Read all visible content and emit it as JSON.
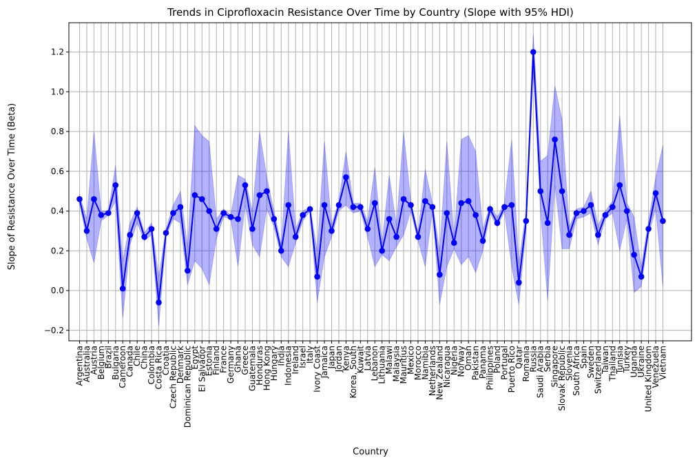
{
  "chart_data": {
    "type": "line",
    "title": "Trends in Ciprofloxacin Resistance Over Time by Country (Slope with 95% HDI)",
    "xlabel": "Country",
    "ylabel": "Slope of Resistance Over Time (Beta)",
    "ylim": [
      -0.25,
      1.33
    ],
    "yticks": [
      -0.2,
      0.0,
      0.2,
      0.4,
      0.6,
      0.8,
      1.0,
      1.2
    ],
    "ytick_labels": [
      "−0.2",
      "0.0",
      "0.2",
      "0.4",
      "0.6",
      "0.8",
      "1.0",
      "1.2"
    ],
    "grid": true,
    "colors": {
      "line": "#0000ff",
      "band": "#0000ff",
      "grid": "#b0b0b0"
    },
    "categories": [
      "Argentina",
      "Australia",
      "Austria",
      "Belgium",
      "Brazil",
      "Bulgaria",
      "Cameroon",
      "Canada",
      "Chile",
      "China",
      "Colombia",
      "Costa Rica",
      "Croatia",
      "Czech Republic",
      "Denmark",
      "Dominican Republic",
      "Egypt",
      "El Salvador",
      "Estonia",
      "Finland",
      "France",
      "Germany",
      "Ghana",
      "Greece",
      "Guatemala",
      "Honduras",
      "Hong Kong",
      "Hungary",
      "India",
      "Indonesia",
      "Ireland",
      "Israel",
      "Italy",
      "Ivory Coast",
      "Jamaica",
      "Japan",
      "Jordan",
      "Kenya",
      "Korea, South",
      "Kuwait",
      "Latvia",
      "Lebanon",
      "Lithuania",
      "Malawi",
      "Malaysia",
      "Mauritius",
      "Mexico",
      "Morocco",
      "Namibia",
      "Netherlands",
      "New Zealand",
      "Nicaragua",
      "Nigeria",
      "Norway",
      "Oman",
      "Pakistan",
      "Panama",
      "Philippines",
      "Poland",
      "Portugal",
      "Puerto Rico",
      "Qatar",
      "Romania",
      "Russia",
      "Saudi Arabia",
      "Serbia",
      "Singapore",
      "Slovak Republic",
      "Slovenia",
      "South Africa",
      "Spain",
      "Sweden",
      "Switzerland",
      "Taiwan",
      "Thailand",
      "Tunisia",
      "Turkey",
      "Uganda",
      "Ukraine",
      "United Kingdom",
      "Venezuela",
      "Vietnam"
    ],
    "series": [
      {
        "values": [
          0.46,
          0.3,
          0.46,
          0.38,
          0.39,
          0.53,
          0.01,
          0.28,
          0.39,
          0.27,
          0.31,
          -0.06,
          0.29,
          0.39,
          0.42,
          0.1,
          0.48,
          0.46,
          0.4,
          0.31,
          0.39,
          0.37,
          0.36,
          0.53,
          0.31,
          0.48,
          0.5,
          0.36,
          0.2,
          0.43,
          0.27,
          0.38,
          0.41,
          0.07,
          0.43,
          0.3,
          0.43,
          0.57,
          0.42,
          0.42,
          0.31,
          0.44,
          0.2,
          0.36,
          0.27,
          0.46,
          0.43,
          0.27,
          0.45,
          0.42,
          0.08,
          0.39,
          0.24,
          0.44,
          0.45,
          0.38,
          0.25,
          0.41,
          0.34,
          0.42,
          0.43,
          0.04,
          0.35,
          1.2,
          0.5,
          0.34,
          0.76,
          0.5,
          0.28,
          0.39,
          0.4,
          0.43,
          0.28,
          0.38,
          0.42,
          0.53,
          0.4,
          0.18,
          0.07,
          0.31,
          0.49,
          0.35
        ],
        "hdi_low": [
          0.44,
          0.26,
          0.14,
          0.35,
          0.38,
          0.45,
          -0.14,
          0.23,
          0.34,
          0.25,
          0.28,
          -0.18,
          0.27,
          0.36,
          0.34,
          0.03,
          0.15,
          0.11,
          0.03,
          0.26,
          0.37,
          0.36,
          0.12,
          0.43,
          0.23,
          0.17,
          0.41,
          0.32,
          0.17,
          0.12,
          0.24,
          0.35,
          0.4,
          -0.06,
          0.17,
          0.27,
          0.4,
          0.43,
          0.39,
          0.4,
          0.27,
          0.12,
          0.18,
          0.15,
          0.22,
          0.28,
          0.4,
          0.25,
          0.12,
          0.4,
          -0.07,
          0.12,
          0.21,
          0.13,
          0.17,
          0.09,
          0.2,
          0.39,
          0.32,
          0.4,
          0.12,
          -0.07,
          0.31,
          1.12,
          0.4,
          -0.05,
          0.53,
          0.21,
          0.21,
          0.36,
          0.37,
          0.39,
          0.23,
          0.36,
          0.39,
          0.2,
          0.36,
          -0.01,
          0.02,
          0.28,
          0.41,
          0.02
        ],
        "hdi_high": [
          0.48,
          0.36,
          0.8,
          0.4,
          0.4,
          0.63,
          0.15,
          0.34,
          0.42,
          0.29,
          0.34,
          0.07,
          0.31,
          0.43,
          0.5,
          0.22,
          0.83,
          0.78,
          0.75,
          0.36,
          0.41,
          0.38,
          0.58,
          0.56,
          0.4,
          0.8,
          0.57,
          0.4,
          0.23,
          0.8,
          0.31,
          0.4,
          0.42,
          0.2,
          0.75,
          0.33,
          0.45,
          0.7,
          0.44,
          0.44,
          0.35,
          0.62,
          0.24,
          0.58,
          0.33,
          0.8,
          0.45,
          0.29,
          0.61,
          0.44,
          0.2,
          0.75,
          0.27,
          0.76,
          0.78,
          0.7,
          0.31,
          0.43,
          0.37,
          0.44,
          0.76,
          0.14,
          0.4,
          1.29,
          0.65,
          0.68,
          1.03,
          0.86,
          0.32,
          0.41,
          0.42,
          0.5,
          0.33,
          0.4,
          0.45,
          0.88,
          0.44,
          0.37,
          0.12,
          0.35,
          0.57,
          0.73
        ]
      }
    ]
  }
}
